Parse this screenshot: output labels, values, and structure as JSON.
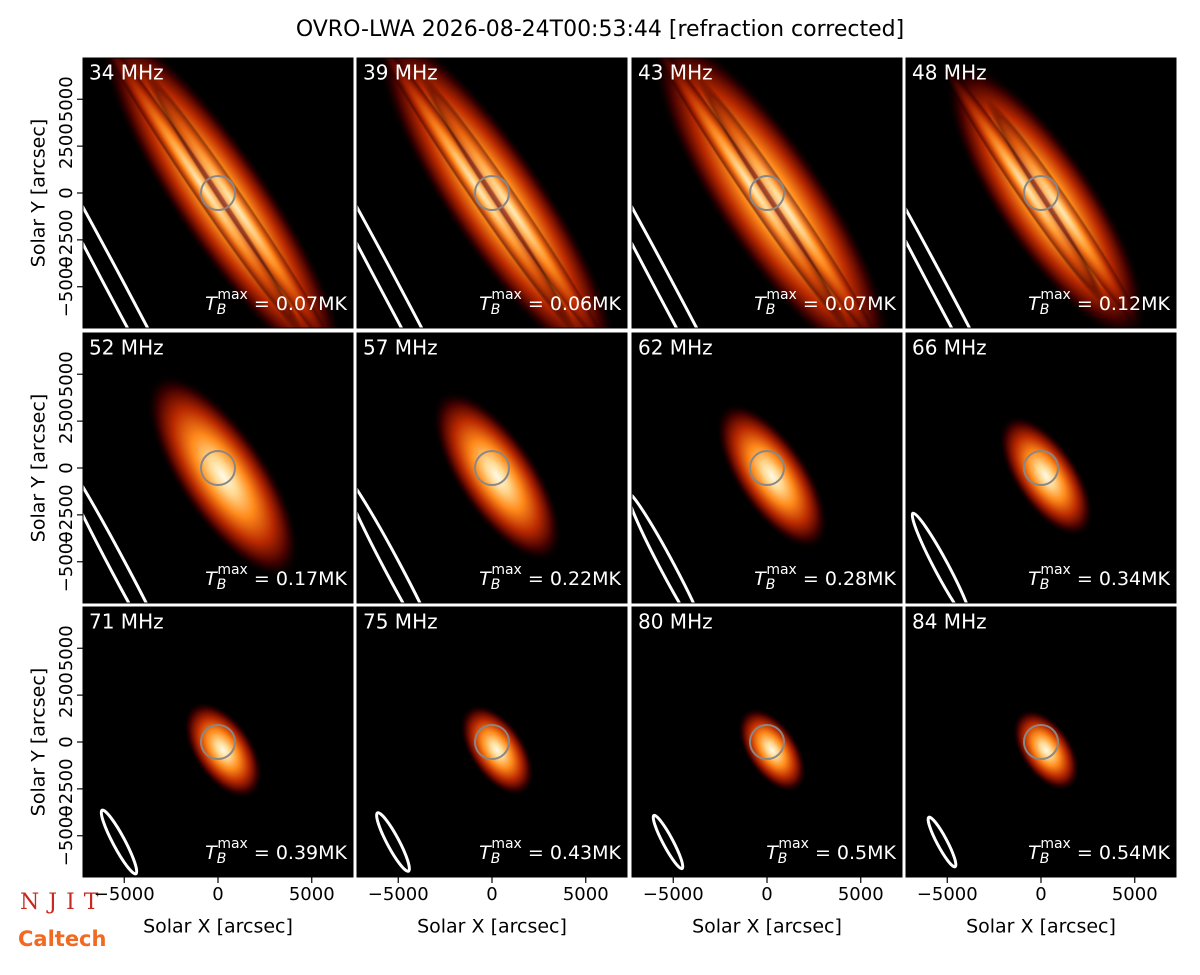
{
  "title": "OVRO-LWA 2026-08-24T00:53:44 [refraction corrected]",
  "logos": [
    "NJIT",
    "Caltech"
  ],
  "chart_data": [
    {
      "type": "image",
      "title": "34 MHz",
      "xlim": [
        -7200,
        7200
      ],
      "ylim": [
        -7200,
        7200
      ],
      "yticks": [
        {
          "value": 5000,
          "label": "5000"
        },
        {
          "value": 2500,
          "label": "2500"
        },
        {
          "value": 0,
          "label": "0"
        },
        {
          "value": -2500,
          "label": "−2500"
        },
        {
          "value": -5000,
          "label": "−5000"
        }
      ],
      "ylabel": "Solar Y [arcsec]",
      "annotation": {
        "symbol": "T",
        "sub": "B",
        "sup": "max",
        "text": " = 0.07MK"
      }
    },
    {
      "type": "image",
      "title": "39 MHz",
      "xlim": [
        -7200,
        7200
      ],
      "ylim": [
        -7200,
        7200
      ],
      "annotation": {
        "symbol": "T",
        "sub": "B",
        "sup": "max",
        "text": " = 0.06MK"
      }
    },
    {
      "type": "image",
      "title": "43 MHz",
      "xlim": [
        -7200,
        7200
      ],
      "ylim": [
        -7200,
        7200
      ],
      "annotation": {
        "symbol": "T",
        "sub": "B",
        "sup": "max",
        "text": " = 0.07MK"
      }
    },
    {
      "type": "image",
      "title": "48 MHz",
      "xlim": [
        -7200,
        7200
      ],
      "ylim": [
        -7200,
        7200
      ],
      "annotation": {
        "symbol": "T",
        "sub": "B",
        "sup": "max",
        "text": " = 0.12MK"
      }
    },
    {
      "type": "image",
      "title": "52 MHz",
      "xlim": [
        -7200,
        7200
      ],
      "ylim": [
        -7200,
        7200
      ],
      "yticks": [
        {
          "value": 5000,
          "label": "5000"
        },
        {
          "value": 2500,
          "label": "2500"
        },
        {
          "value": 0,
          "label": "0"
        },
        {
          "value": -2500,
          "label": "−2500"
        },
        {
          "value": -5000,
          "label": "−5000"
        }
      ],
      "ylabel": "Solar Y [arcsec]",
      "annotation": {
        "symbol": "T",
        "sub": "B",
        "sup": "max",
        "text": " = 0.17MK"
      }
    },
    {
      "type": "image",
      "title": "57 MHz",
      "xlim": [
        -7200,
        7200
      ],
      "ylim": [
        -7200,
        7200
      ],
      "annotation": {
        "symbol": "T",
        "sub": "B",
        "sup": "max",
        "text": " = 0.22MK"
      }
    },
    {
      "type": "image",
      "title": "62 MHz",
      "xlim": [
        -7200,
        7200
      ],
      "ylim": [
        -7200,
        7200
      ],
      "annotation": {
        "symbol": "T",
        "sub": "B",
        "sup": "max",
        "text": " = 0.28MK"
      }
    },
    {
      "type": "image",
      "title": "66 MHz",
      "xlim": [
        -7200,
        7200
      ],
      "ylim": [
        -7200,
        7200
      ],
      "annotation": {
        "symbol": "T",
        "sub": "B",
        "sup": "max",
        "text": " = 0.34MK"
      }
    },
    {
      "type": "image",
      "title": "71 MHz",
      "xlim": [
        -7200,
        7200
      ],
      "ylim": [
        -7200,
        7200
      ],
      "xticks": [
        {
          "value": -5000,
          "label": "−5000"
        },
        0,
        5000
      ],
      "yticks": [
        {
          "value": 5000,
          "label": "5000"
        },
        {
          "value": 2500,
          "label": "2500"
        },
        {
          "value": 0,
          "label": "0"
        },
        {
          "value": -2500,
          "label": "−2500"
        },
        {
          "value": -5000,
          "label": "−5000"
        }
      ],
      "xlabel": "Solar X [arcsec]",
      "ylabel": "Solar Y [arcsec]",
      "annotation": {
        "symbol": "T",
        "sub": "B",
        "sup": "max",
        "text": " = 0.39MK"
      }
    },
    {
      "type": "image",
      "title": "75 MHz",
      "xlim": [
        -7200,
        7200
      ],
      "ylim": [
        -7200,
        7200
      ],
      "xticks": [
        {
          "value": -5000,
          "label": "−5000"
        },
        0,
        5000
      ],
      "xlabel": "Solar X [arcsec]",
      "annotation": {
        "symbol": "T",
        "sub": "B",
        "sup": "max",
        "text": " = 0.43MK"
      }
    },
    {
      "type": "image",
      "title": "80 MHz",
      "xlim": [
        -7200,
        7200
      ],
      "ylim": [
        -7200,
        7200
      ],
      "xticks": [
        {
          "value": -5000,
          "label": "−5000"
        },
        0,
        5000
      ],
      "xlabel": "Solar X [arcsec]",
      "annotation": {
        "symbol": "T",
        "sub": "B",
        "sup": "max",
        "text": " = 0.5MK"
      }
    },
    {
      "type": "image",
      "title": "84 MHz",
      "xlim": [
        -7200,
        7200
      ],
      "ylim": [
        -7200,
        7200
      ],
      "xticks": [
        {
          "value": -5000,
          "label": "−5000"
        },
        0,
        5000
      ],
      "xlabel": "Solar X [arcsec]",
      "annotation": {
        "symbol": "T",
        "sub": "B",
        "sup": "max",
        "text": " = 0.54MK"
      }
    }
  ]
}
